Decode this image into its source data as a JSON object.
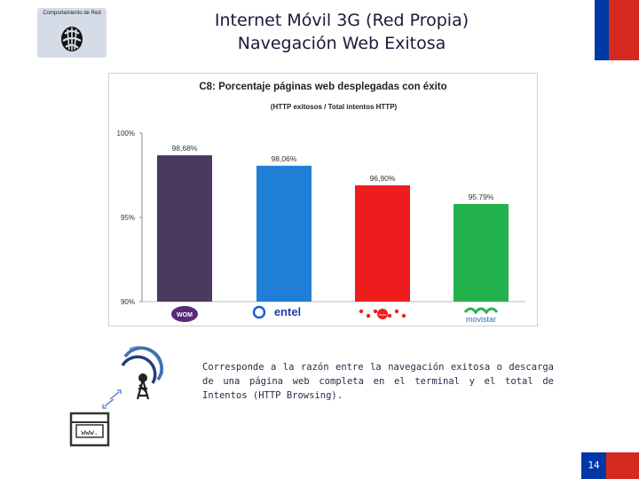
{
  "badge": {
    "text": "Comportamiento de Red"
  },
  "title": {
    "line1": "Internet Móvil 3G (Red Propia)",
    "line2": "Navegación Web Exitosa"
  },
  "description": "Corresponde a la razón entre la navegación exitosa o descarga de una página web completa en el terminal y el total de Intentos (HTTP Browsing).",
  "tower_label": "www.",
  "page_number": "14",
  "colors": {
    "flag_red": "#d52b1e",
    "flag_blue": "#0039a6"
  },
  "chart_data": {
    "type": "bar",
    "title": "C8: Porcentaje páginas web desplegadas con éxito",
    "subtitle": "(HTTP exitosos / Total intentos HTTP)",
    "categories": [
      "WOM",
      "entel",
      "claro",
      "movistar"
    ],
    "values": [
      98.68,
      98.06,
      96.9,
      95.79
    ],
    "value_labels": [
      "98,68%",
      "98,06%",
      "96,90%",
      "95.79%"
    ],
    "colors": [
      "#4a3a5f",
      "#1f7fd6",
      "#ee1d1d",
      "#22b24c"
    ],
    "ylim": [
      90,
      100
    ],
    "yticks": [
      90,
      95,
      100
    ],
    "ytick_labels": [
      "90%",
      "95%",
      "100%"
    ],
    "grid": false,
    "xlabel": "",
    "ylabel": ""
  }
}
